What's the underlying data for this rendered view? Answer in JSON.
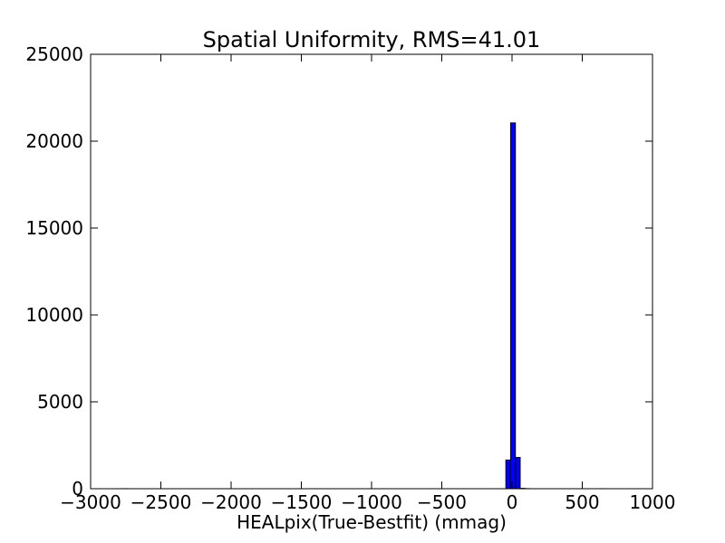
{
  "chart_data": {
    "type": "bar",
    "title": "Spatial Uniformity, RMS=41.01",
    "xlabel": "HEALpix(True-Bestfit) (mmag)",
    "ylabel": "",
    "xlim": [
      -3000,
      1000
    ],
    "ylim": [
      0,
      25000
    ],
    "xticks": [
      -3000,
      -2500,
      -2000,
      -1500,
      -1000,
      -500,
      0,
      500,
      1000
    ],
    "xtick_labels": [
      "−3000",
      "−2500",
      "−2000",
      "−1500",
      "−1000",
      "−500",
      "0",
      "500",
      "1000"
    ],
    "yticks": [
      0,
      5000,
      10000,
      15000,
      20000,
      25000
    ],
    "ytick_labels": [
      "0",
      "5000",
      "10000",
      "15000",
      "20000",
      "25000"
    ],
    "bin_width": 34,
    "bins": [
      {
        "x0": -2770,
        "x1": -2736,
        "count": 3
      },
      {
        "x0": -44,
        "x1": -10,
        "count": 1650
      },
      {
        "x0": -10,
        "x1": 24,
        "count": 21050
      },
      {
        "x0": 24,
        "x1": 58,
        "count": 1800
      },
      {
        "x0": 58,
        "x1": 92,
        "count": 20
      },
      {
        "x0": 92,
        "x1": 126,
        "count": 5
      },
      {
        "x0": 630,
        "x1": 664,
        "count": 2
      }
    ],
    "bar_color": "#0000ff",
    "grid": false,
    "legend": "none"
  }
}
